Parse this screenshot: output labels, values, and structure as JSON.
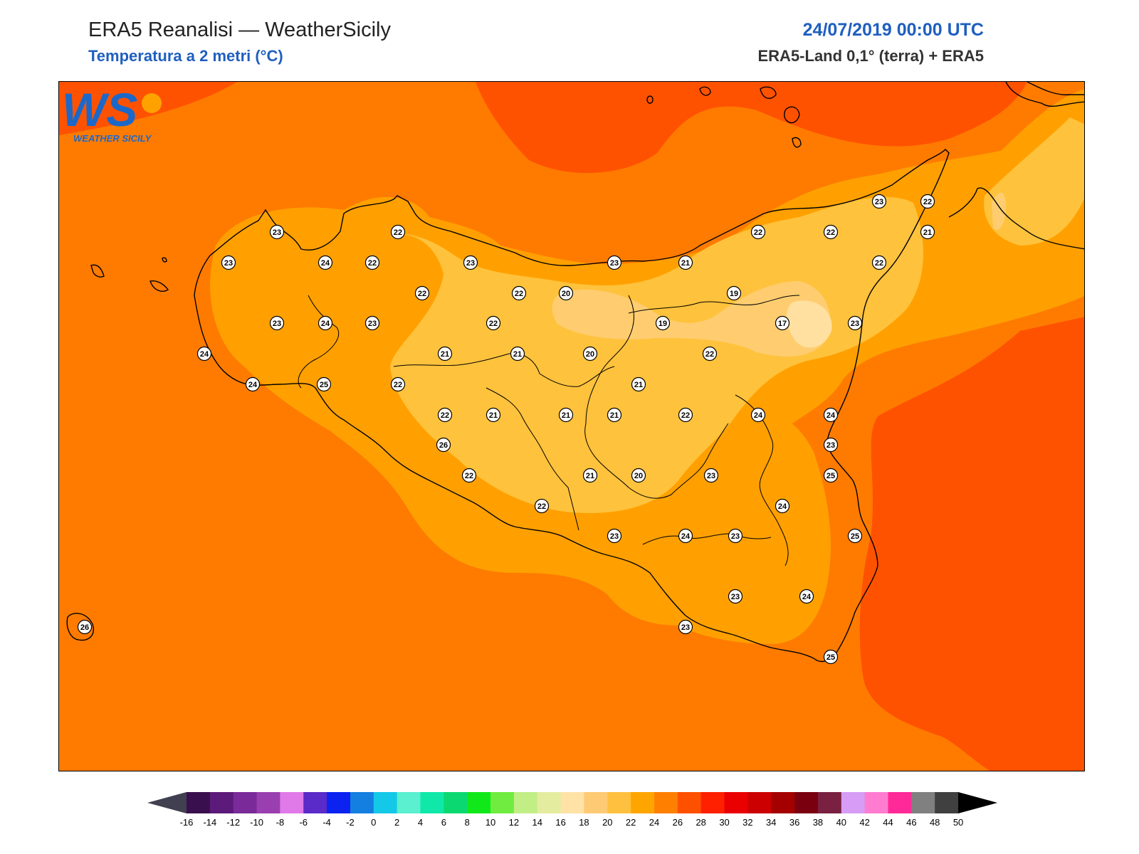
{
  "header": {
    "title": "ERA5 Reanalisi — WeatherSicily",
    "subtitle": "Temperatura a 2 metri (°C)",
    "datetime": "24/07/2019 00:00 UTC",
    "source": "ERA5-Land 0,1° (terra) + ERA5"
  },
  "logo": {
    "letters": "WS",
    "text": "WEATHER SICILY",
    "icon": "sun-drop-logo-icon"
  },
  "colorbar": {
    "labels": [
      "-16",
      "-14",
      "-12",
      "-10",
      "-8",
      "-6",
      "-4",
      "-2",
      "0",
      "2",
      "4",
      "6",
      "8",
      "10",
      "12",
      "14",
      "16",
      "18",
      "20",
      "22",
      "24",
      "26",
      "28",
      "30",
      "32",
      "34",
      "36",
      "38",
      "40",
      "42",
      "44",
      "46",
      "48",
      "50"
    ],
    "colors": [
      "#3a0f4d",
      "#5c1a7a",
      "#7a2a99",
      "#9a3fb0",
      "#e07ae8",
      "#5a2bc8",
      "#0b22f0",
      "#147fe0",
      "#14c8e8",
      "#5af0d0",
      "#0fe8a8",
      "#0bd870",
      "#11e81a",
      "#70ec40",
      "#c2ee86",
      "#e4eca0",
      "#ffe2a6",
      "#ffca74",
      "#ffc040",
      "#ffa500",
      "#ff8000",
      "#ff5000",
      "#ff2000",
      "#ea0000",
      "#cc0000",
      "#a40000",
      "#7a0010",
      "#7a2040",
      "#d69cf6",
      "#ff7cd0",
      "#ff2a98",
      "#808080",
      "#404040"
    ],
    "under_color": "#404050",
    "over_color": "#000000"
  },
  "map_colors": {
    "t26": "#ff7b00",
    "t28": "#ff5200",
    "t24": "#ffa000",
    "t22": "#ffc23c",
    "t20": "#ffcd70",
    "t18": "#ffe0a0"
  },
  "stations": [
    {
      "v": "23"
    },
    {
      "v": "22"
    },
    {
      "v": "23"
    },
    {
      "v": "24"
    },
    {
      "v": "22"
    },
    {
      "v": "23"
    },
    {
      "v": "23"
    },
    {
      "v": "22"
    },
    {
      "v": "21"
    },
    {
      "v": "22"
    },
    {
      "v": "22"
    },
    {
      "v": "22"
    },
    {
      "v": "23"
    },
    {
      "v": "22"
    },
    {
      "v": "22"
    },
    {
      "v": "20"
    },
    {
      "v": "19"
    },
    {
      "v": "21"
    },
    {
      "v": "23"
    },
    {
      "v": "24"
    },
    {
      "v": "23"
    },
    {
      "v": "22"
    },
    {
      "v": "19"
    },
    {
      "v": "17"
    },
    {
      "v": "23"
    },
    {
      "v": "24"
    },
    {
      "v": "21"
    },
    {
      "v": "21"
    },
    {
      "v": "20"
    },
    {
      "v": "22"
    },
    {
      "v": "24"
    },
    {
      "v": "25"
    },
    {
      "v": "22"
    },
    {
      "v": "21"
    },
    {
      "v": "24"
    },
    {
      "v": "22"
    },
    {
      "v": "21"
    },
    {
      "v": "21"
    },
    {
      "v": "21"
    },
    {
      "v": "22"
    },
    {
      "v": "24"
    },
    {
      "v": "26"
    },
    {
      "v": "23"
    },
    {
      "v": "22"
    },
    {
      "v": "21"
    },
    {
      "v": "20"
    },
    {
      "v": "23"
    },
    {
      "v": "25"
    },
    {
      "v": "22"
    },
    {
      "v": "24"
    },
    {
      "v": "23"
    },
    {
      "v": "24"
    },
    {
      "v": "23"
    },
    {
      "v": "25"
    },
    {
      "v": "23"
    },
    {
      "v": "24"
    },
    {
      "v": "23"
    },
    {
      "v": "26"
    },
    {
      "v": "25"
    }
  ]
}
